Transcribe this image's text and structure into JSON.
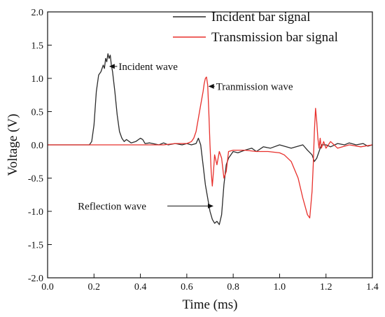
{
  "chart_data": {
    "type": "line",
    "xlabel": "Time (ms)",
    "ylabel": "Voltage (V)",
    "xlim": [
      0.0,
      1.4
    ],
    "ylim": [
      -2.0,
      2.0
    ],
    "x_ticks": [
      "0.0",
      "0.2",
      "0.4",
      "0.6",
      "0.8",
      "1.0",
      "1.2",
      "1.4"
    ],
    "y_ticks": [
      "-2.0",
      "-1.5",
      "-1.0",
      "-0.5",
      "0.0",
      "0.5",
      "1.0",
      "1.5",
      "2.0"
    ],
    "grid": false,
    "legend_position": "top-right",
    "series": [
      {
        "name": "Incident bar signal",
        "color": "#2b2b2b",
        "x": [
          0.0,
          0.18,
          0.19,
          0.2,
          0.21,
          0.22,
          0.23,
          0.24,
          0.245,
          0.25,
          0.255,
          0.26,
          0.265,
          0.27,
          0.275,
          0.28,
          0.29,
          0.3,
          0.31,
          0.32,
          0.33,
          0.34,
          0.36,
          0.38,
          0.4,
          0.41,
          0.42,
          0.44,
          0.48,
          0.5,
          0.52,
          0.55,
          0.58,
          0.6,
          0.62,
          0.64,
          0.65,
          0.66,
          0.67,
          0.68,
          0.69,
          0.7,
          0.71,
          0.72,
          0.73,
          0.74,
          0.75,
          0.76,
          0.77,
          0.78,
          0.79,
          0.8,
          0.82,
          0.85,
          0.88,
          0.9,
          0.93,
          0.96,
          1.0,
          1.05,
          1.1,
          1.12,
          1.14,
          1.15,
          1.16,
          1.17,
          1.18,
          1.2,
          1.22,
          1.25,
          1.28,
          1.3,
          1.33,
          1.36,
          1.38,
          1.4
        ],
        "y": [
          0.0,
          0.0,
          0.05,
          0.3,
          0.8,
          1.05,
          1.1,
          1.2,
          1.15,
          1.3,
          1.25,
          1.37,
          1.3,
          1.35,
          1.2,
          1.1,
          0.8,
          0.45,
          0.2,
          0.1,
          0.05,
          0.08,
          0.03,
          0.05,
          0.1,
          0.08,
          0.02,
          0.03,
          0.0,
          0.03,
          0.0,
          0.02,
          0.0,
          0.02,
          0.0,
          0.02,
          0.1,
          0.0,
          -0.3,
          -0.6,
          -0.8,
          -1.0,
          -1.12,
          -1.18,
          -1.15,
          -1.2,
          -1.05,
          -0.6,
          -0.3,
          -0.2,
          -0.15,
          -0.1,
          -0.12,
          -0.08,
          -0.05,
          -0.1,
          -0.03,
          -0.05,
          0.0,
          -0.05,
          0.0,
          -0.08,
          -0.15,
          -0.25,
          -0.2,
          -0.1,
          0.0,
          0.0,
          -0.03,
          0.02,
          0.0,
          0.03,
          0.0,
          0.02,
          -0.02,
          0.0
        ]
      },
      {
        "name": "Transmission bar signal",
        "color": "#e8302c",
        "x": [
          0.0,
          0.5,
          0.55,
          0.6,
          0.62,
          0.63,
          0.64,
          0.65,
          0.66,
          0.67,
          0.675,
          0.68,
          0.685,
          0.69,
          0.695,
          0.7,
          0.705,
          0.71,
          0.715,
          0.72,
          0.73,
          0.74,
          0.75,
          0.76,
          0.77,
          0.78,
          0.8,
          0.85,
          0.9,
          0.95,
          1.0,
          1.02,
          1.05,
          1.08,
          1.1,
          1.12,
          1.13,
          1.14,
          1.145,
          1.15,
          1.155,
          1.16,
          1.165,
          1.17,
          1.175,
          1.18,
          1.19,
          1.2,
          1.21,
          1.22,
          1.25,
          1.3,
          1.35,
          1.4
        ],
        "y": [
          0.0,
          0.0,
          0.02,
          0.02,
          0.05,
          0.1,
          0.2,
          0.4,
          0.6,
          0.8,
          0.92,
          1.0,
          1.02,
          0.9,
          0.5,
          0.0,
          -0.4,
          -0.62,
          -0.4,
          -0.15,
          -0.3,
          -0.1,
          -0.2,
          -0.5,
          -0.4,
          -0.1,
          -0.08,
          -0.08,
          -0.1,
          -0.1,
          -0.12,
          -0.15,
          -0.25,
          -0.5,
          -0.8,
          -1.05,
          -1.1,
          -0.7,
          -0.3,
          0.2,
          0.55,
          0.35,
          0.1,
          -0.05,
          0.1,
          -0.05,
          0.05,
          -0.05,
          0.0,
          0.05,
          -0.05,
          0.0,
          -0.03,
          0.0
        ]
      }
    ],
    "annotations": [
      {
        "text": "Incident wave",
        "x": 0.3,
        "y": 1.18,
        "arrow_to_x": 0.265,
        "arrow_to_y": 1.18
      },
      {
        "text": "Tranmission wave",
        "x": 0.72,
        "y": 0.88,
        "arrow_to_x": 0.693,
        "arrow_to_y": 0.88
      },
      {
        "text": "Reflection wave",
        "x": 0.13,
        "y": -0.92,
        "arrow_to_x": 0.715,
        "arrow_to_y": -0.92
      }
    ]
  }
}
